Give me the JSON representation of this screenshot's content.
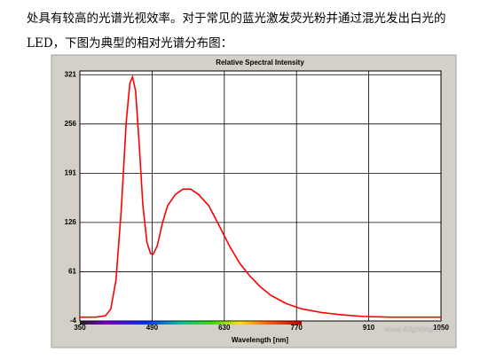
{
  "paragraph": {
    "lines": [
      "处具有较高的光谱光视效率。对于常见的蓝光激发荧光粉并通过混光发出白光的",
      "LED，下图为典型的相对光谱分布图："
    ]
  },
  "chart_data": {
    "type": "line",
    "title": "Relative Spectral Intensity",
    "x_label": "Wavelength [nm]",
    "x": [
      350,
      380,
      400,
      410,
      420,
      430,
      440,
      447,
      452,
      458,
      465,
      472,
      480,
      487,
      492,
      500,
      510,
      520,
      535,
      550,
      565,
      580,
      600,
      620,
      640,
      660,
      680,
      700,
      720,
      750,
      780,
      820,
      860,
      900,
      950,
      1000,
      1050
    ],
    "series": [
      {
        "name": "Relative Spectral Intensity",
        "color": "#ff0000",
        "values": [
          1,
          1,
          3,
          12,
          50,
          140,
          260,
          310,
          318,
          300,
          230,
          150,
          100,
          85,
          84,
          95,
          125,
          148,
          163,
          170,
          170,
          163,
          148,
          122,
          95,
          72,
          55,
          41,
          30,
          19,
          12,
          7,
          4,
          2,
          1,
          1,
          1
        ]
      }
    ],
    "xlim": [
      350,
      1050
    ],
    "ylim": [
      -4,
      326
    ],
    "xticks": [
      350,
      490,
      630,
      770,
      910,
      1050
    ],
    "yticks": [
      321,
      256,
      191,
      126,
      61,
      -4
    ],
    "grid": true,
    "watermark": "www.Alighting.cn"
  }
}
